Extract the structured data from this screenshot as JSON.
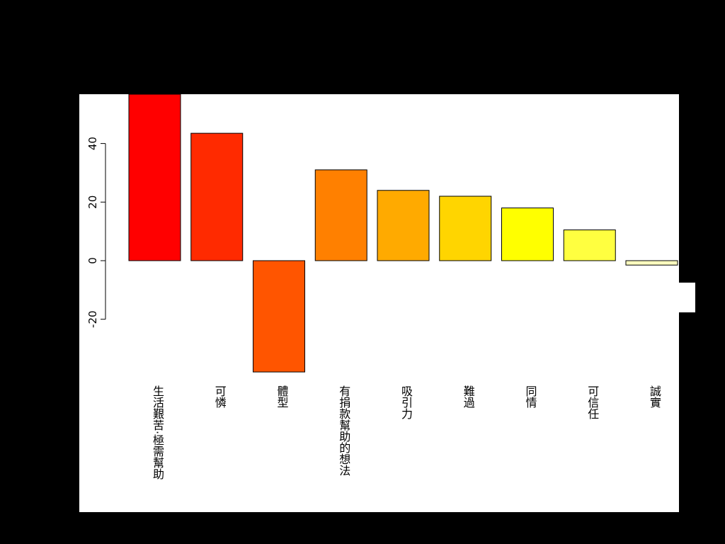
{
  "chart_data": {
    "type": "bar",
    "title": "",
    "xlabel": "",
    "ylabel": "",
    "categories": [
      "生活艱苦·極需幫助",
      "可憐",
      "體型",
      "有捐款幫助的想法",
      "吸引力",
      "難過",
      "同情",
      "可信任",
      "誠實"
    ],
    "values": [
      57,
      43.5,
      -38,
      31,
      24,
      22,
      18,
      10.5,
      -1.5
    ],
    "colors": [
      "#FF0000",
      "#FF2A00",
      "#FF5500",
      "#FF8000",
      "#FFAA00",
      "#FFD500",
      "#FFFF00",
      "#FFFF40",
      "#FFFFBF"
    ],
    "yticks": [
      -20,
      0,
      20,
      40
    ],
    "ylim": [
      -40,
      57
    ],
    "grid": false,
    "legend": "none"
  }
}
